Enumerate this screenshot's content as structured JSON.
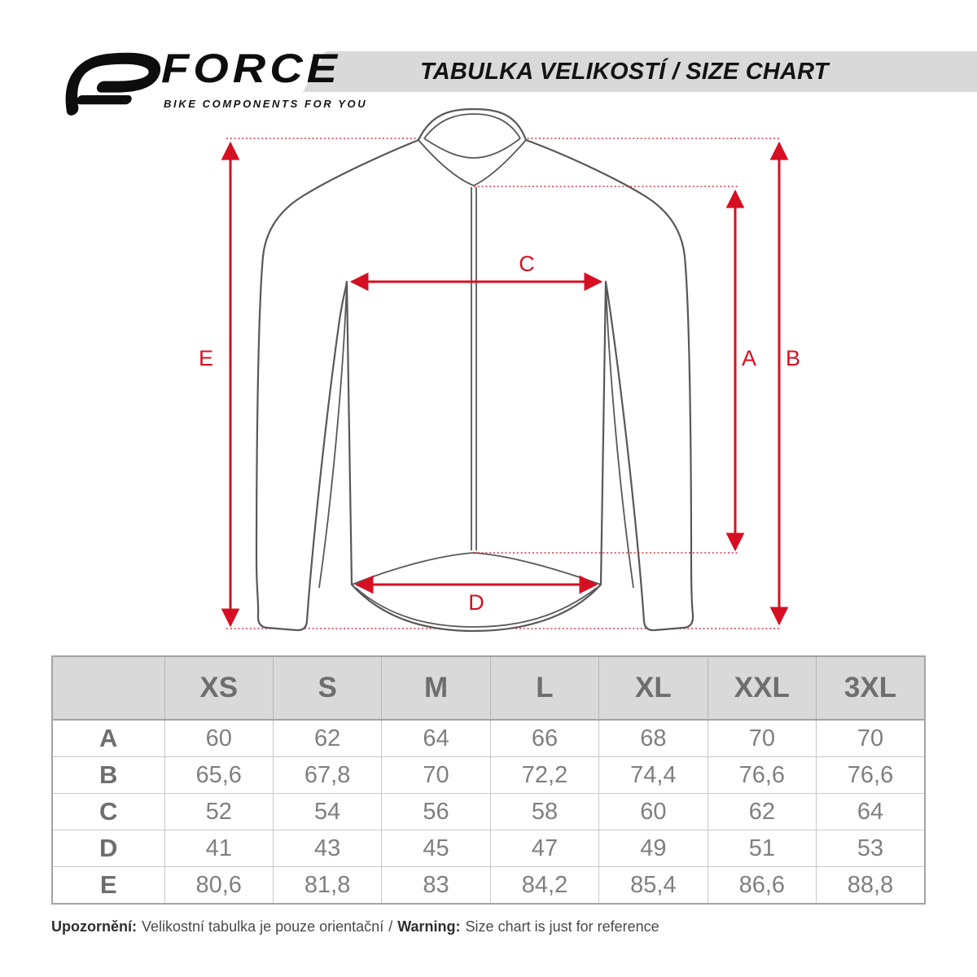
{
  "brand": {
    "name": "FORCE",
    "tagline": "BIKE COMPONENTS FOR YOU"
  },
  "header": {
    "title": "TABULKA VELIKOSTÍ / SIZE CHART",
    "band_color": "#d9d9d9"
  },
  "diagram": {
    "accent_color": "#d60f22",
    "outline_color": "#58585a",
    "labels": {
      "A": "A",
      "B": "B",
      "C": "C",
      "D": "D",
      "E": "E"
    }
  },
  "table": {
    "columns": [
      "XS",
      "S",
      "M",
      "L",
      "XL",
      "XXL",
      "3XL"
    ],
    "rows": [
      {
        "label": "A",
        "values": [
          "60",
          "62",
          "64",
          "66",
          "68",
          "70",
          "70"
        ]
      },
      {
        "label": "B",
        "values": [
          "65,6",
          "67,8",
          "70",
          "72,2",
          "74,4",
          "76,6",
          "76,6"
        ]
      },
      {
        "label": "C",
        "values": [
          "52",
          "54",
          "56",
          "58",
          "60",
          "62",
          "64"
        ]
      },
      {
        "label": "D",
        "values": [
          "41",
          "43",
          "45",
          "47",
          "49",
          "51",
          "53"
        ]
      },
      {
        "label": "E",
        "values": [
          "80,6",
          "81,8",
          "83",
          "84,2",
          "85,4",
          "86,6",
          "88,8"
        ]
      }
    ]
  },
  "footer": {
    "note_cs_label": "Upozornění:",
    "note_cs": "Velikostní tabulka je pouze orientační",
    "separator": "/",
    "note_en_label": "Warning:",
    "note_en": "Size chart is just for reference"
  }
}
